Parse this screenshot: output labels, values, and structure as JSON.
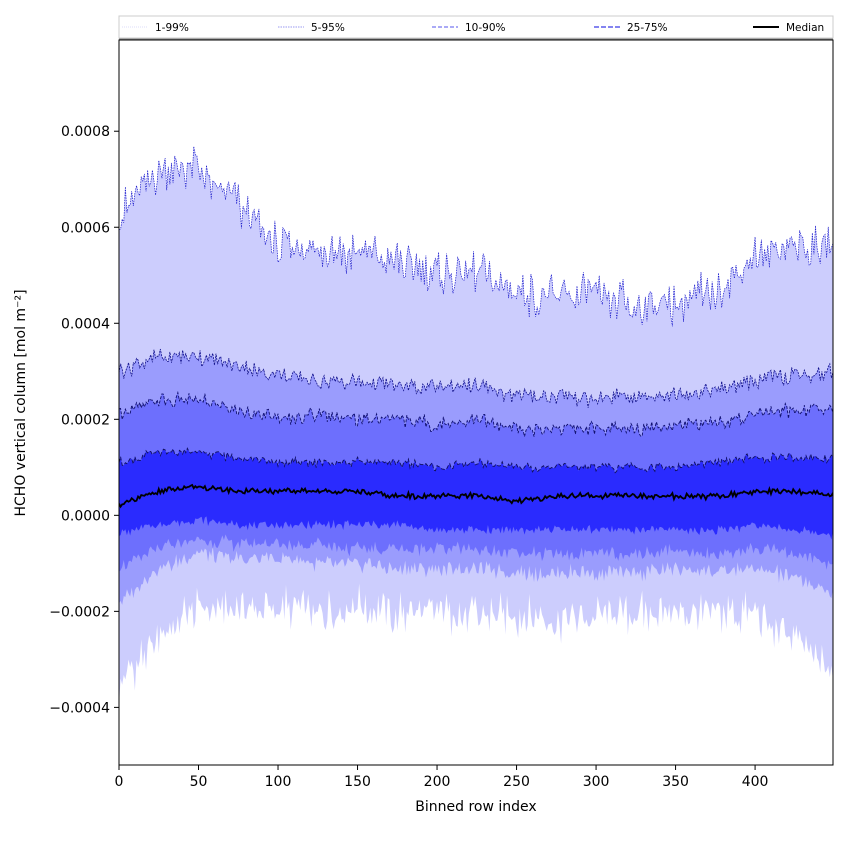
{
  "chart_data": {
    "type": "area",
    "xlabel": "Binned row index",
    "ylabel": "HCHO vertical column [mol m⁻²]",
    "xlim": [
      0,
      449
    ],
    "ylim": [
      -0.00052,
      0.00099
    ],
    "x_ticks": [
      0,
      50,
      100,
      150,
      200,
      250,
      300,
      350,
      400
    ],
    "x_tick_labels": [
      "0",
      "50",
      "100",
      "150",
      "200",
      "250",
      "300",
      "350",
      "400"
    ],
    "y_ticks": [
      -0.0004,
      -0.0002,
      0.0,
      0.0002,
      0.0004,
      0.0006,
      0.0008
    ],
    "y_tick_labels": [
      "−0.0004",
      "−0.0002",
      "0.0000",
      "0.0002",
      "0.0004",
      "0.0006",
      "0.0008"
    ],
    "grid": false,
    "legend_position": "top",
    "legend": [
      {
        "label": "1-99%",
        "color": "#dcdcf8",
        "style": "dotted"
      },
      {
        "label": "5-95%",
        "color": "#9a9af0",
        "style": "dotted"
      },
      {
        "label": "10-90%",
        "color": "#7878f0",
        "style": "dashed"
      },
      {
        "label": "25-75%",
        "color": "#3a3ae8",
        "style": "dashed"
      },
      {
        "label": "Median",
        "color": "#000000",
        "style": "solid"
      }
    ],
    "band_colors": [
      "#cccdfd",
      "#9a9cfd",
      "#6d6ffd",
      "#2a2bfe"
    ],
    "x": [
      0,
      25,
      50,
      75,
      100,
      125,
      150,
      175,
      200,
      225,
      250,
      275,
      300,
      325,
      350,
      375,
      400,
      425,
      449
    ],
    "series": [
      {
        "name": "1-99%",
        "lower": [
          -0.00036,
          -0.00025,
          -0.00019,
          -0.0002,
          -0.00019,
          -0.0002,
          -0.00019,
          -0.00021,
          -0.0002,
          -0.00021,
          -0.00021,
          -0.00022,
          -0.00021,
          -0.00021,
          -0.0002,
          -0.00021,
          -0.0002,
          -0.00026,
          -0.00033
        ],
        "upper": [
          0.00062,
          0.00072,
          0.00072,
          0.00064,
          0.00056,
          0.00055,
          0.00055,
          0.00053,
          0.0005,
          0.00051,
          0.00046,
          0.00046,
          0.00045,
          0.00044,
          0.00044,
          0.00047,
          0.00054,
          0.00056,
          0.00057
        ]
      },
      {
        "name": "5-95%",
        "lower": [
          -0.00018,
          -0.00011,
          -8e-05,
          -9e-05,
          -9e-05,
          -0.0001,
          -0.0001,
          -0.00011,
          -0.00011,
          -0.00011,
          -0.00012,
          -0.00012,
          -0.00012,
          -0.00012,
          -0.00011,
          -0.00012,
          -0.00011,
          -0.00013,
          -0.00016
        ],
        "upper": [
          0.0003,
          0.00033,
          0.00033,
          0.00031,
          0.00029,
          0.00028,
          0.00028,
          0.00027,
          0.00027,
          0.00027,
          0.00025,
          0.00025,
          0.00024,
          0.00025,
          0.00025,
          0.00026,
          0.00028,
          0.00029,
          0.0003
        ]
      },
      {
        "name": "10-90%",
        "lower": [
          -0.00011,
          -7e-05,
          -5e-05,
          -6e-05,
          -6e-05,
          -6e-05,
          -7e-05,
          -7e-05,
          -7e-05,
          -7e-05,
          -8e-05,
          -8e-05,
          -8e-05,
          -8e-05,
          -7e-05,
          -8e-05,
          -7e-05,
          -8e-05,
          -0.0001
        ],
        "upper": [
          0.00021,
          0.00024,
          0.00024,
          0.00022,
          0.0002,
          0.00021,
          0.0002,
          0.0002,
          0.00019,
          0.0002,
          0.00018,
          0.00018,
          0.00018,
          0.00018,
          0.00019,
          0.00019,
          0.00021,
          0.00022,
          0.00022
        ]
      },
      {
        "name": "25-75%",
        "lower": [
          -4e-05,
          -2e-05,
          -1e-05,
          -2e-05,
          -2e-05,
          -2e-05,
          -2e-05,
          -2e-05,
          -3e-05,
          -3e-05,
          -3e-05,
          -3e-05,
          -3e-05,
          -3e-05,
          -3e-05,
          -3e-05,
          -2e-05,
          -3e-05,
          -4e-05
        ],
        "upper": [
          0.00011,
          0.00013,
          0.00013,
          0.00012,
          0.00011,
          0.00011,
          0.00011,
          0.00011,
          0.0001,
          0.00011,
          0.0001,
          0.0001,
          0.0001,
          0.0001,
          0.0001,
          0.00011,
          0.00012,
          0.00012,
          0.00012
        ]
      },
      {
        "name": "Median",
        "values": [
          2e-05,
          5e-05,
          6e-05,
          5e-05,
          5e-05,
          5e-05,
          5e-05,
          4e-05,
          4e-05,
          4e-05,
          3e-05,
          4e-05,
          4e-05,
          4e-05,
          4e-05,
          4e-05,
          5e-05,
          5e-05,
          4e-05
        ]
      }
    ]
  }
}
